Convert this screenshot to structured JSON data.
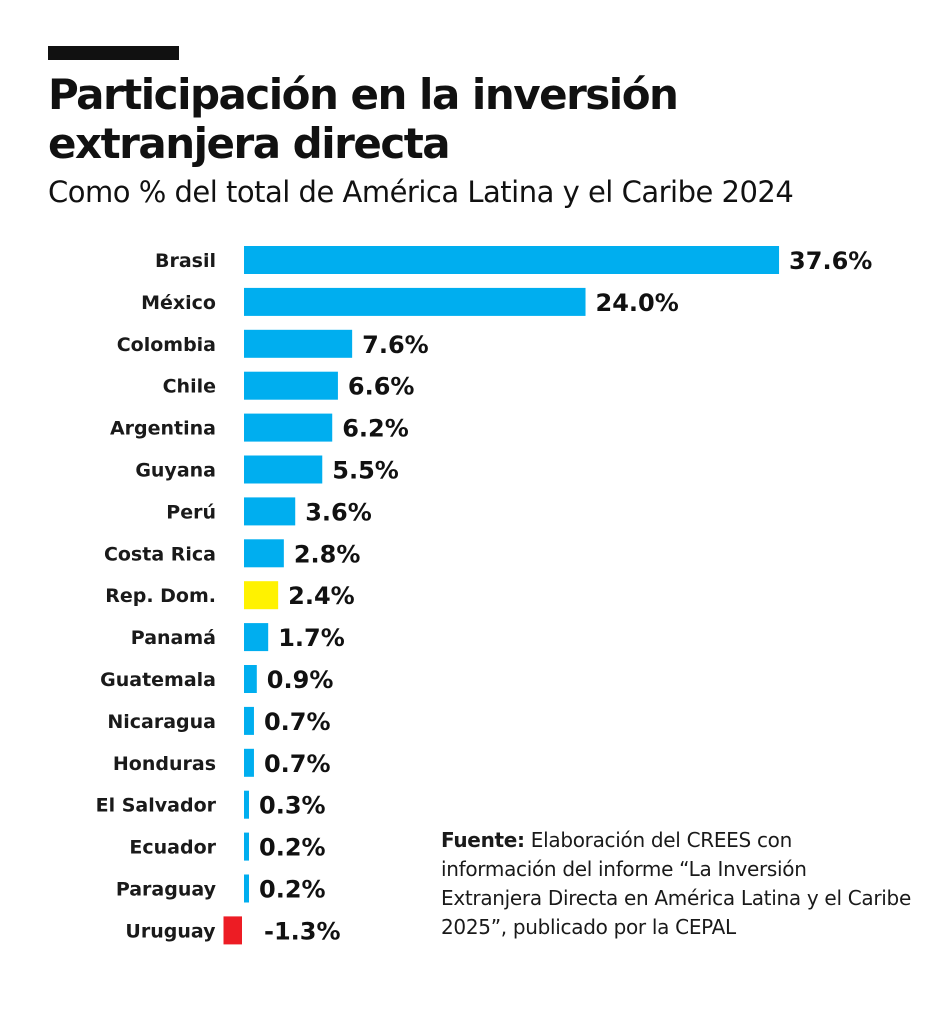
{
  "header": {
    "title_line1": "Participación en la inversión",
    "title_line2": "extranjera directa",
    "subtitle": "Como % del total de América Latina y el Caribe 2024"
  },
  "source": {
    "label": "Fuente:",
    "text": " Elaboración del CREES con información del informe “La Inversión Extranjera Directa en América Latina y el Caribe 2025”, publicado por la CEPAL"
  },
  "colors": {
    "bar_default": "#00aeef",
    "bar_highlight": "#fff200",
    "bar_negative": "#ed1c24"
  },
  "chart_data": {
    "type": "bar",
    "orientation": "horizontal",
    "title": "Participación en la inversión extranjera directa",
    "subtitle": "Como % del total de América Latina y el Caribe 2024",
    "categories": [
      "Brasil",
      "México",
      "Colombia",
      "Chile",
      "Argentina",
      "Guyana",
      "Perú",
      "Costa Rica",
      "Rep. Dom.",
      "Panamá",
      "Guatemala",
      "Nicaragua",
      "Honduras",
      "El Salvador",
      "Ecuador",
      "Paraguay",
      "Uruguay"
    ],
    "values": [
      37.6,
      24.0,
      7.6,
      6.6,
      6.2,
      5.5,
      3.6,
      2.8,
      2.4,
      1.7,
      0.9,
      0.7,
      0.7,
      0.3,
      0.2,
      0.2,
      -1.3
    ],
    "value_labels": [
      "37.6%",
      "24.0%",
      "7.6%",
      "6.6%",
      "6.2%",
      "5.5%",
      "3.6%",
      "2.8%",
      "2.4%",
      "1.7%",
      "0.9%",
      "0.7%",
      "0.7%",
      "0.3%",
      "0.2%",
      "0.2%",
      "-1.3%"
    ],
    "highlight": {
      "Rep. Dom.": "bar_highlight",
      "Uruguay": "bar_negative"
    },
    "unit": "%",
    "grid": false,
    "legend": "none"
  }
}
